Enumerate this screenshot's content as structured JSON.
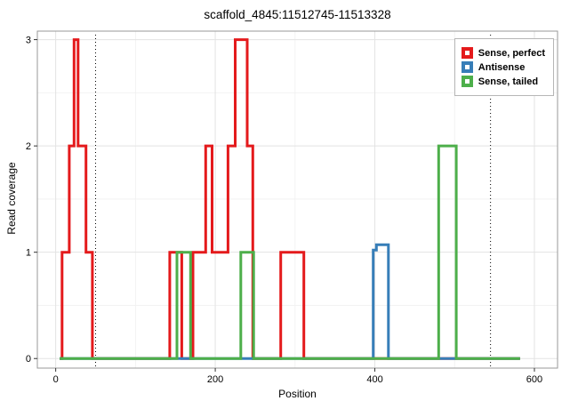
{
  "title": "scaffold_4845:11512745-11513328",
  "chart_data": {
    "type": "line",
    "subtype": "step",
    "title": "scaffold_4845:11512745-11513328",
    "xlabel": "Position",
    "ylabel": "Read coverage",
    "xlim": [
      -23,
      629
    ],
    "ylim": [
      -0.09,
      3.08
    ],
    "xticks": [
      0,
      200,
      400,
      600
    ],
    "yticks": [
      0,
      1,
      2,
      3
    ],
    "xticks_minor": [
      100,
      300,
      500
    ],
    "yticks_minor": [
      0.5,
      1.5,
      2.5
    ],
    "grid": true,
    "legend_position": "top-right",
    "vlines": {
      "positions": [
        50,
        545
      ],
      "style": "dotted",
      "color": "#000000"
    },
    "style": {
      "panel_background": "#ffffff",
      "panel_border": "#999999",
      "grid_major": "#e3e3e3",
      "grid_minor": "#f2f2f2",
      "line_width": 3
    },
    "series": [
      {
        "name": "Sense, perfect",
        "color": "#E41A1C",
        "points": [
          [
            5,
            0
          ],
          [
            8,
            0
          ],
          [
            8,
            1
          ],
          [
            17,
            1
          ],
          [
            17,
            2
          ],
          [
            23,
            2
          ],
          [
            23,
            3
          ],
          [
            28,
            3
          ],
          [
            28,
            2
          ],
          [
            38,
            2
          ],
          [
            38,
            1
          ],
          [
            46,
            1
          ],
          [
            46,
            0
          ],
          [
            143,
            0
          ],
          [
            143,
            1
          ],
          [
            158,
            1
          ],
          [
            158,
            0
          ],
          [
            172,
            0
          ],
          [
            172,
            1
          ],
          [
            188,
            1
          ],
          [
            188,
            2
          ],
          [
            196,
            2
          ],
          [
            196,
            1
          ],
          [
            216,
            1
          ],
          [
            216,
            2
          ],
          [
            225,
            2
          ],
          [
            225,
            3
          ],
          [
            240,
            3
          ],
          [
            240,
            2
          ],
          [
            247,
            2
          ],
          [
            247,
            0
          ],
          [
            282,
            0
          ],
          [
            282,
            1
          ],
          [
            311,
            1
          ],
          [
            311,
            0
          ],
          [
            582,
            0
          ]
        ]
      },
      {
        "name": "Antisense",
        "color": "#377EB8",
        "points": [
          [
            5,
            0
          ],
          [
            398,
            0
          ],
          [
            398,
            1.02
          ],
          [
            402,
            1.02
          ],
          [
            402,
            1.07
          ],
          [
            417,
            1.07
          ],
          [
            417,
            0
          ],
          [
            582,
            0
          ]
        ]
      },
      {
        "name": "Sense, tailed",
        "color": "#4DAF4A",
        "points": [
          [
            5,
            0
          ],
          [
            152,
            0
          ],
          [
            152,
            1
          ],
          [
            169,
            1
          ],
          [
            169,
            0
          ],
          [
            232,
            0
          ],
          [
            232,
            1
          ],
          [
            248,
            1
          ],
          [
            248,
            0
          ],
          [
            480,
            0
          ],
          [
            480,
            2
          ],
          [
            502,
            2
          ],
          [
            502,
            0
          ],
          [
            582,
            0
          ]
        ]
      }
    ]
  }
}
